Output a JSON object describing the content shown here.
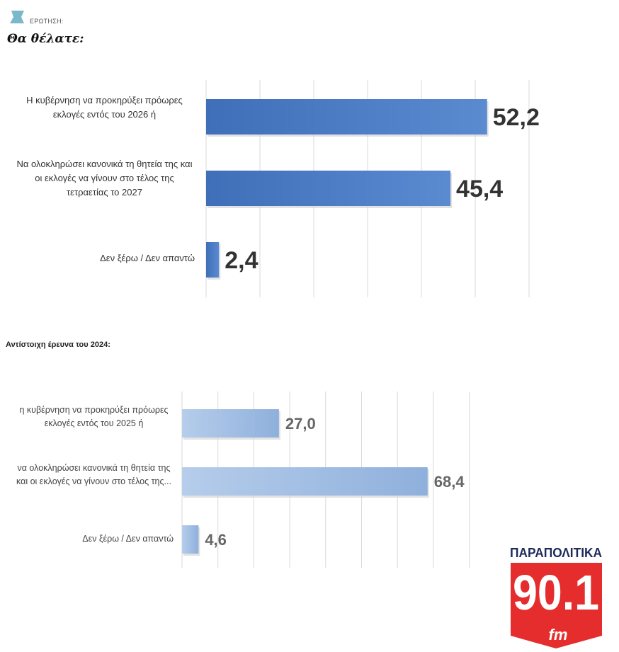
{
  "header": {
    "label": "ΕΡΩΤΗΣΗ:",
    "question": "Θα θέλατε:"
  },
  "chart_data": [
    {
      "type": "bar",
      "orientation": "horizontal",
      "title": "",
      "categories": [
        "Η κυβέρνηση να προκηρύξει πρόωρες εκλογές εντός του 2026 ή",
        "Να ολοκληρώσει κανονικά τη θητεία της και οι εκλογές να γίνουν στο τέλος της τετραετίας το 2027",
        "Δεν ξέρω / Δεν απαντώ"
      ],
      "values": [
        52.2,
        45.4,
        2.4
      ],
      "data_labels": [
        "52,2",
        "45,4",
        "2,4"
      ],
      "xlim": [
        0,
        60
      ],
      "grid": true,
      "color": "#4a7cc4"
    },
    {
      "type": "bar",
      "orientation": "horizontal",
      "title": "Αντίστοιχη έρευνα του 2024:",
      "categories": [
        "η κυβέρνηση να προκηρύξει πρόωρες εκλογές εντός του 2025 ή",
        "να ολοκληρώσει κανονικά τη θητεία της και οι εκλογές να γίνουν στο τέλος της...",
        "Δεν ξέρω / Δεν απαντώ"
      ],
      "values": [
        27.0,
        68.4,
        4.6
      ],
      "data_labels": [
        "27,0",
        "68,4",
        "4,6"
      ],
      "xlim": [
        0,
        80
      ],
      "grid": true,
      "color": "#a9c3e6"
    }
  ],
  "logo": {
    "brand": "ΠΑΡΑΠΟΛΙΤΙΚΑ",
    "frequency": "90.1",
    "band": "fm",
    "colors": {
      "red": "#e52d2d",
      "navy": "#1d2a5a"
    }
  }
}
